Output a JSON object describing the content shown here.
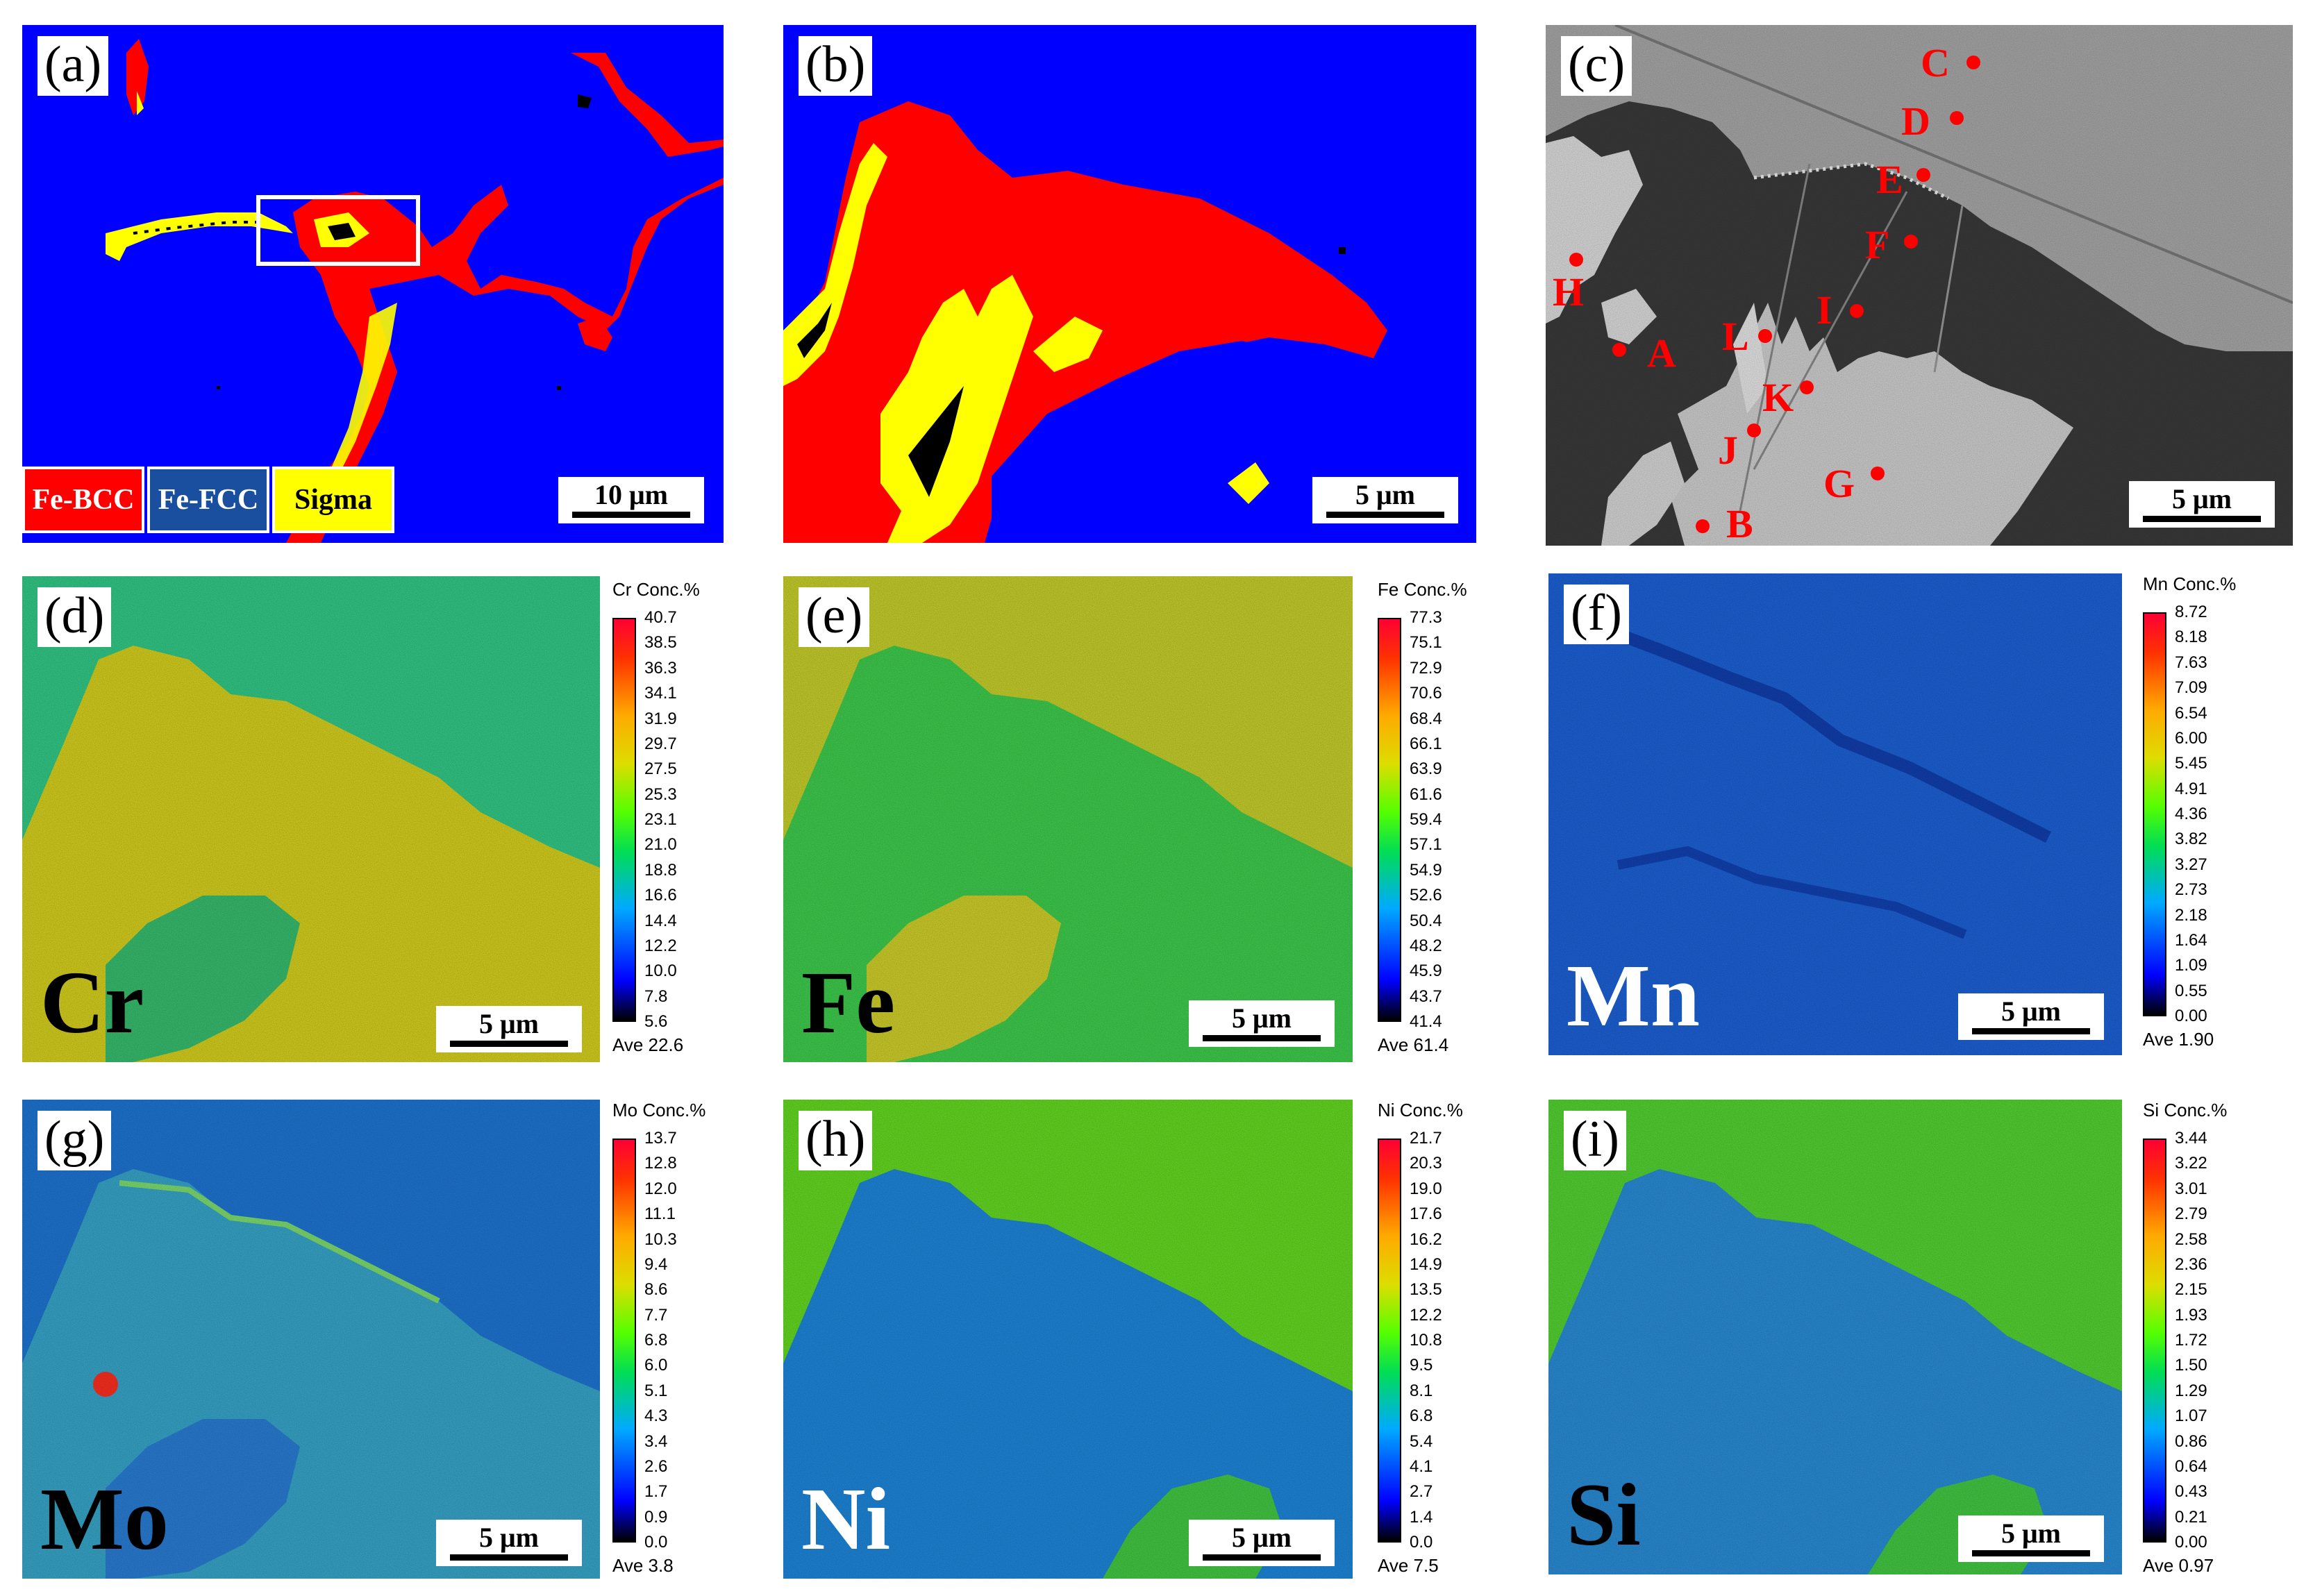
{
  "panels": {
    "a": {
      "label": "(a)",
      "scale": "10 μm",
      "legend": [
        {
          "text": "Fe-BCC",
          "color": "#ff0000"
        },
        {
          "text": "Fe-FCC",
          "color": "#1a4fa0"
        },
        {
          "text": "Sigma",
          "color": "#ffff00"
        }
      ]
    },
    "b": {
      "label": "(b)",
      "scale": "5 μm"
    },
    "c": {
      "label": "(c)",
      "scale": "5 μm",
      "points": [
        "A",
        "B",
        "C",
        "D",
        "E",
        "F",
        "G",
        "H",
        "I",
        "J",
        "K",
        "L"
      ]
    },
    "d": {
      "label": "(d)",
      "element": "Cr",
      "scale": "5 μm",
      "cbar_title": "Cr Conc.%",
      "ticks": [
        "40.7",
        "38.5",
        "36.3",
        "34.1",
        "31.9",
        "29.7",
        "27.5",
        "25.3",
        "23.1",
        "21.0",
        "18.8",
        "16.6",
        "14.4",
        "12.2",
        "10.0",
        "7.8",
        "5.6"
      ],
      "ave": "Ave 22.6"
    },
    "e": {
      "label": "(e)",
      "element": "Fe",
      "scale": "5 μm",
      "cbar_title": "Fe Conc.%",
      "ticks": [
        "77.3",
        "75.1",
        "72.9",
        "70.6",
        "68.4",
        "66.1",
        "63.9",
        "61.6",
        "59.4",
        "57.1",
        "54.9",
        "52.6",
        "50.4",
        "48.2",
        "45.9",
        "43.7",
        "41.4"
      ],
      "ave": "Ave 61.4"
    },
    "f": {
      "label": "(f)",
      "element": "Mn",
      "scale": "5 μm",
      "cbar_title": "Mn Conc.%",
      "ticks": [
        "8.72",
        "8.18",
        "7.63",
        "7.09",
        "6.54",
        "6.00",
        "5.45",
        "4.91",
        "4.36",
        "3.82",
        "3.27",
        "2.73",
        "2.18",
        "1.64",
        "1.09",
        "0.55",
        "0.00"
      ],
      "ave": "Ave 1.90"
    },
    "g": {
      "label": "(g)",
      "element": "Mo",
      "scale": "5 μm",
      "cbar_title": "Mo Conc.%",
      "ticks": [
        "13.7",
        "12.8",
        "12.0",
        "11.1",
        "10.3",
        "9.4",
        "8.6",
        "7.7",
        "6.8",
        "6.0",
        "5.1",
        "4.3",
        "3.4",
        "2.6",
        "1.7",
        "0.9",
        "0.0"
      ],
      "ave": "Ave 3.8"
    },
    "h": {
      "label": "(h)",
      "element": "Ni",
      "scale": "5 μm",
      "cbar_title": "Ni Conc.%",
      "ticks": [
        "21.7",
        "20.3",
        "19.0",
        "17.6",
        "16.2",
        "14.9",
        "13.5",
        "12.2",
        "10.8",
        "9.5",
        "8.1",
        "6.8",
        "5.4",
        "4.1",
        "2.7",
        "1.4",
        "0.0"
      ],
      "ave": "Ave 7.5"
    },
    "i": {
      "label": "(i)",
      "element": "Si",
      "scale": "5 μm",
      "cbar_title": "Si Conc.%",
      "ticks": [
        "3.44",
        "3.22",
        "3.01",
        "2.79",
        "2.58",
        "2.36",
        "2.15",
        "1.93",
        "1.72",
        "1.50",
        "1.29",
        "1.07",
        "0.86",
        "0.64",
        "0.43",
        "0.21",
        "0.00"
      ],
      "ave": "Ave 0.97"
    }
  }
}
